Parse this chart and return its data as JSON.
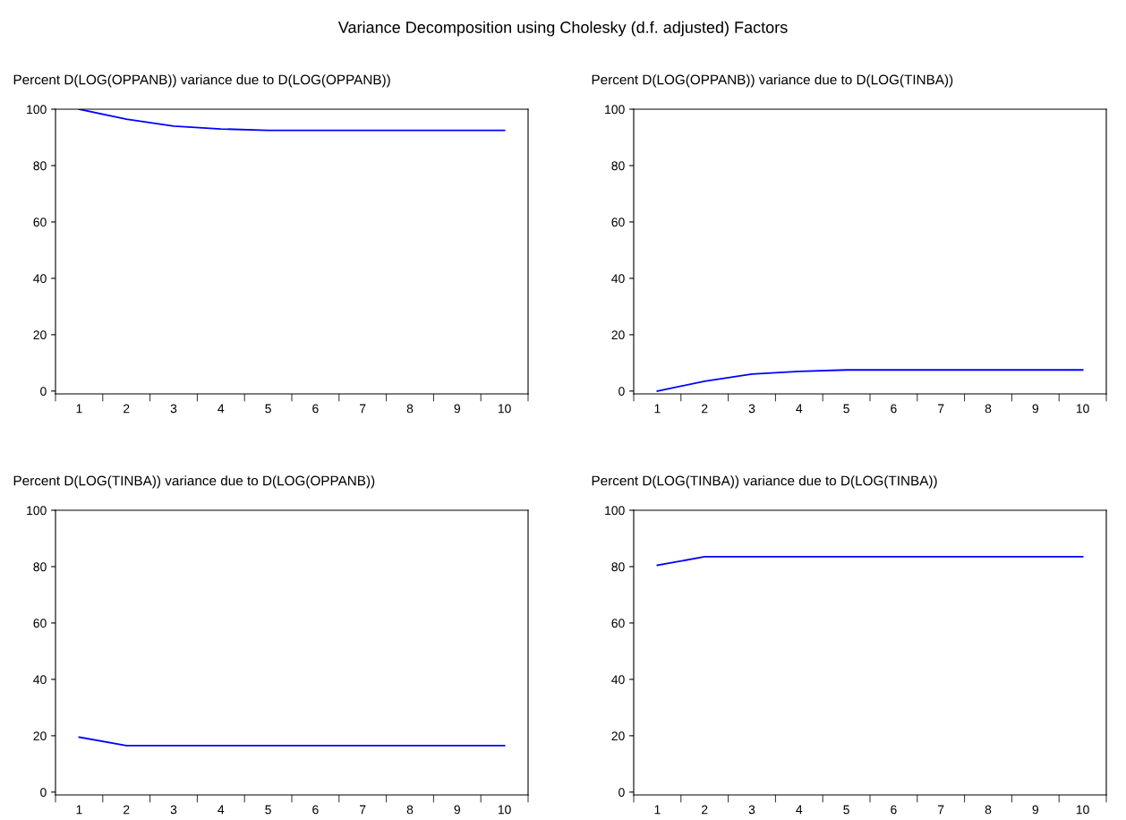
{
  "chart_data": [
    {
      "type": "line",
      "annotations": [
        "Variance Decomposition using Cholesky (d.f. adjusted) Factors"
      ],
      "title": "Percent D(LOG(OPPANB)) variance due to D(LOG(OPPANB))",
      "categories": [
        "1",
        "2",
        "3",
        "4",
        "5",
        "6",
        "7",
        "8",
        "9",
        "10"
      ],
      "series": [
        {
          "color": "#0000ff",
          "values": [
            100,
            96.5,
            94,
            93,
            92.5,
            92.5,
            92.5,
            92.5,
            92.5,
            92.5
          ]
        }
      ],
      "ylim": [
        -1,
        100
      ],
      "yticks": [
        0,
        20,
        40,
        60,
        80,
        100
      ],
      "grid": false,
      "legend": false
    },
    {
      "type": "line",
      "title": "Percent D(LOG(OPPANB)) variance due to D(LOG(TINBA))",
      "categories": [
        "1",
        "2",
        "3",
        "4",
        "5",
        "6",
        "7",
        "8",
        "9",
        "10"
      ],
      "series": [
        {
          "color": "#0000ff",
          "values": [
            0,
            3.5,
            6,
            7,
            7.5,
            7.5,
            7.5,
            7.5,
            7.5,
            7.5
          ]
        }
      ],
      "ylim": [
        -1,
        100
      ],
      "yticks": [
        0,
        20,
        40,
        60,
        80,
        100
      ],
      "grid": false,
      "legend": false
    },
    {
      "type": "line",
      "title": "Percent D(LOG(TINBA)) variance due to D(LOG(OPPANB))",
      "categories": [
        "1",
        "2",
        "3",
        "4",
        "5",
        "6",
        "7",
        "8",
        "9",
        "10"
      ],
      "series": [
        {
          "color": "#0000ff",
          "values": [
            19.5,
            16.5,
            16.5,
            16.5,
            16.5,
            16.5,
            16.5,
            16.5,
            16.5,
            16.5
          ]
        }
      ],
      "ylim": [
        -1,
        100
      ],
      "yticks": [
        0,
        20,
        40,
        60,
        80,
        100
      ],
      "grid": false,
      "legend": false
    },
    {
      "type": "line",
      "title": "Percent D(LOG(TINBA)) variance due to D(LOG(TINBA))",
      "categories": [
        "1",
        "2",
        "3",
        "4",
        "5",
        "6",
        "7",
        "8",
        "9",
        "10"
      ],
      "series": [
        {
          "color": "#0000ff",
          "values": [
            80.5,
            83.5,
            83.5,
            83.5,
            83.5,
            83.5,
            83.5,
            83.5,
            83.5,
            83.5
          ]
        }
      ],
      "ylim": [
        -1,
        100
      ],
      "yticks": [
        0,
        20,
        40,
        60,
        80,
        100
      ],
      "grid": false,
      "legend": false
    }
  ]
}
